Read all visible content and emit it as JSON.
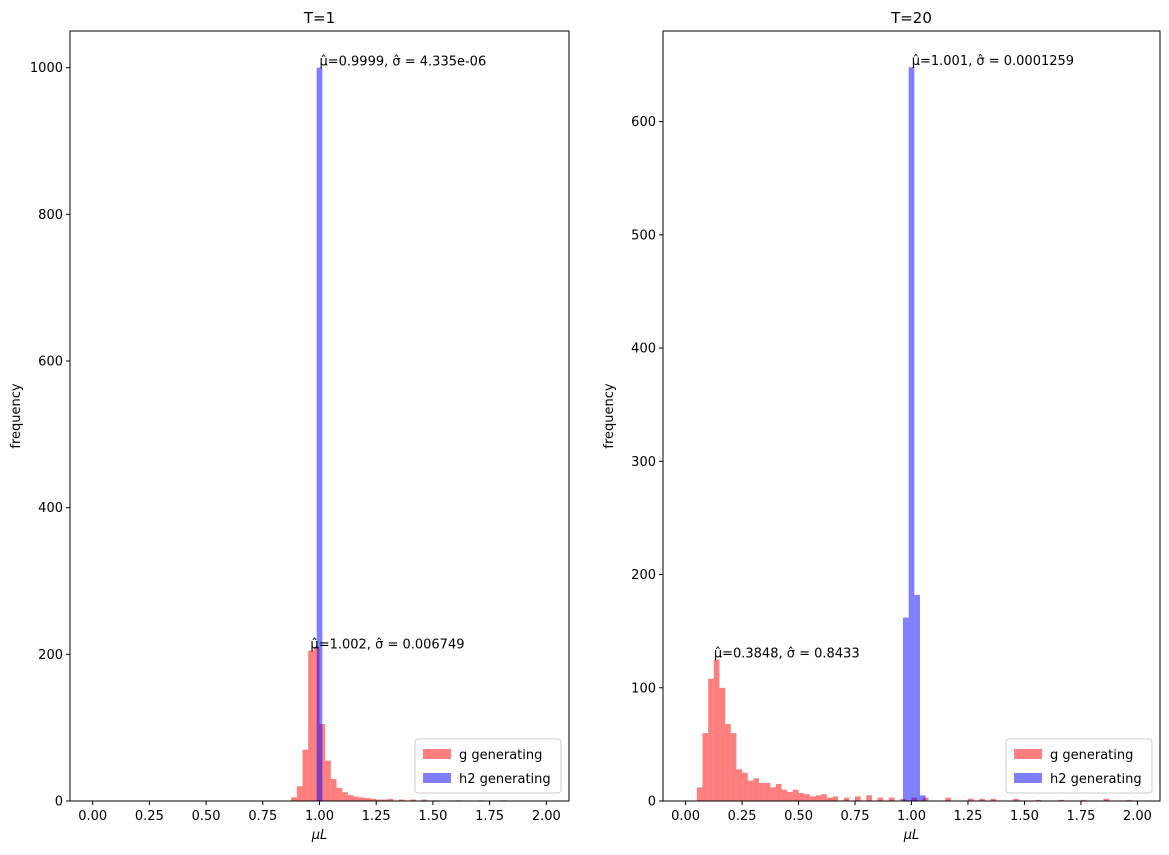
{
  "chart_data": [
    {
      "type": "bar",
      "subtype": "overlaid-histogram",
      "title": "T=1",
      "xlabel": "μL",
      "ylabel": "frequency",
      "xlim": [
        -0.1,
        2.1
      ],
      "ylim": [
        0,
        1050
      ],
      "xticks": [
        "0.00",
        "0.25",
        "0.50",
        "0.75",
        "1.00",
        "1.25",
        "1.50",
        "1.75",
        "2.00"
      ],
      "yticks": [
        "0",
        "200",
        "400",
        "600",
        "800",
        "1000"
      ],
      "bin_width": 0.025,
      "legend_position": "lower right",
      "series": [
        {
          "name": "g generating",
          "color": "#ff0000",
          "alpha": 0.5,
          "bin_starts": [
            0.875,
            0.9,
            0.925,
            0.95,
            0.975,
            1.0,
            1.025,
            1.05,
            1.075,
            1.1,
            1.125,
            1.15,
            1.175,
            1.2,
            1.225,
            1.25,
            1.275,
            1.3,
            1.35,
            1.4,
            1.45,
            1.5,
            1.6,
            1.7,
            1.8
          ],
          "values": [
            5,
            20,
            70,
            205,
            210,
            105,
            55,
            30,
            18,
            12,
            8,
            6,
            5,
            4,
            3,
            2,
            2,
            3,
            2,
            2,
            2,
            1,
            1,
            1,
            1
          ]
        },
        {
          "name": "h2 generating",
          "color": "#0000ff",
          "alpha": 0.5,
          "bin_starts": [
            0.9875
          ],
          "values": [
            1000
          ]
        }
      ],
      "annotations": [
        {
          "text": "μ̂=0.9999, σ̂ = 4.335e-06",
          "x": 0.9999,
          "y": 1000
        },
        {
          "text": "μ̂=1.002, σ̂ = 0.006749",
          "x": 0.96,
          "y": 205
        }
      ]
    },
    {
      "type": "bar",
      "subtype": "overlaid-histogram",
      "title": "T=20",
      "xlabel": "μL",
      "ylabel": "frequency",
      "xlim": [
        -0.1,
        2.1
      ],
      "ylim": [
        0,
        680
      ],
      "xticks": [
        "0.00",
        "0.25",
        "0.50",
        "0.75",
        "1.00",
        "1.25",
        "1.50",
        "1.75",
        "2.00"
      ],
      "yticks": [
        "0",
        "100",
        "200",
        "300",
        "400",
        "500",
        "600"
      ],
      "bin_width": 0.025,
      "legend_position": "lower right",
      "series": [
        {
          "name": "g generating",
          "color": "#ff0000",
          "alpha": 0.5,
          "bin_starts": [
            0.05,
            0.075,
            0.1,
            0.125,
            0.15,
            0.175,
            0.2,
            0.225,
            0.25,
            0.275,
            0.3,
            0.325,
            0.35,
            0.375,
            0.4,
            0.425,
            0.45,
            0.475,
            0.5,
            0.525,
            0.55,
            0.575,
            0.6,
            0.625,
            0.65,
            0.7,
            0.75,
            0.8,
            0.85,
            0.9,
            0.95,
            1.0,
            1.05,
            1.15,
            1.25,
            1.3,
            1.35,
            1.45,
            1.55,
            1.65,
            1.75,
            1.85,
            1.95
          ],
          "values": [
            12,
            60,
            108,
            125,
            100,
            68,
            60,
            28,
            25,
            18,
            20,
            16,
            16,
            12,
            15,
            10,
            8,
            10,
            7,
            6,
            4,
            5,
            6,
            3,
            4,
            3,
            4,
            5,
            3,
            3,
            2,
            3,
            3,
            3,
            2,
            2,
            2,
            2,
            1,
            1,
            1,
            2,
            1
          ]
        },
        {
          "name": "h2 generating",
          "color": "#0000ff",
          "alpha": 0.5,
          "bin_starts": [
            0.9625,
            0.9875,
            1.0125,
            1.0375
          ],
          "values": [
            162,
            648,
            182,
            5
          ]
        }
      ],
      "annotations": [
        {
          "text": "μ̂=1.001, σ̂ = 0.0001259",
          "x": 1.001,
          "y": 648
        },
        {
          "text": "μ̂=0.3848, σ̂ = 0.8433",
          "x": 0.125,
          "y": 125
        }
      ]
    }
  ]
}
